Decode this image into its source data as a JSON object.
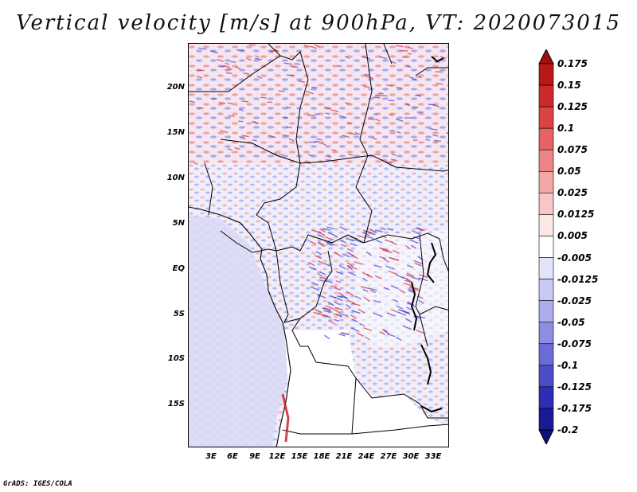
{
  "title": "Vertical velocity [m/s] at 900hPa, VT: 2020073015",
  "credit": "GrADS: IGES/COLA",
  "map": {
    "lat_labels": [
      "20N",
      "15N",
      "10N",
      "5N",
      "EQ",
      "5S",
      "10S",
      "15S"
    ],
    "lon_labels": [
      "3E",
      "6E",
      "9E",
      "12E",
      "15E",
      "18E",
      "21E",
      "24E",
      "27E",
      "30E",
      "33E"
    ]
  },
  "colorbar": {
    "labels": [
      "0.175",
      "0.15",
      "0.125",
      "0.1",
      "0.075",
      "0.05",
      "0.025",
      "0.0125",
      "0.005",
      "-0.005",
      "-0.0125",
      "-0.025",
      "-0.05",
      "-0.075",
      "-0.1",
      "-0.125",
      "-0.175",
      "-0.2"
    ],
    "colors": [
      "#9e1010",
      "#b81818",
      "#cc2a2a",
      "#dc4343",
      "#e56363",
      "#ec8585",
      "#f3a6a6",
      "#f8c6c6",
      "#fde6e6",
      "#ffffff",
      "#e3e3fb",
      "#c9c9f5",
      "#adaded",
      "#8d8de2",
      "#6c6cd6",
      "#4c4cc6",
      "#2e2eb2",
      "#1a1a94",
      "#0f0f78"
    ]
  }
}
